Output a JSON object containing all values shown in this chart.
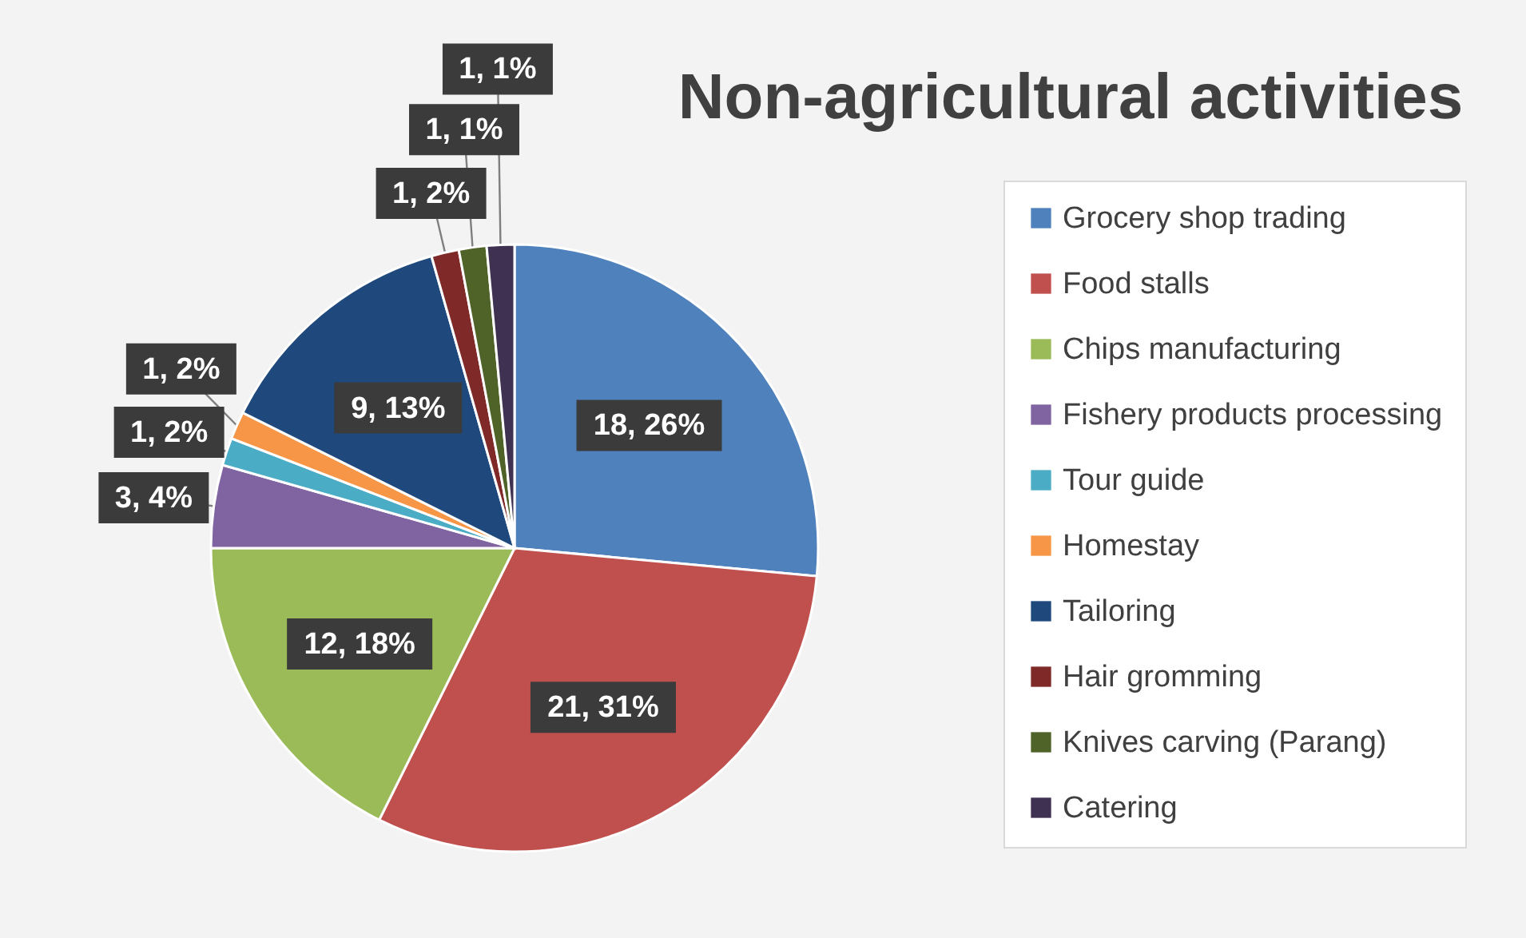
{
  "chart_data": {
    "type": "pie",
    "title": "Non-agricultural activities",
    "categories": [
      "Grocery shop trading",
      "Food stalls",
      "Chips manufacturing",
      "Fishery products processing",
      "Tour guide",
      "Homestay",
      "Tailoring",
      "Hair gromming",
      "Knives carving (Parang)",
      "Catering"
    ],
    "values": [
      18,
      21,
      12,
      3,
      1,
      1,
      9,
      1,
      1,
      1
    ],
    "colors": [
      "#4f81bd",
      "#c0504d",
      "#9bbb59",
      "#8064a2",
      "#4bacc6",
      "#f79646",
      "#1f497d",
      "#7f2a28",
      "#4f6228",
      "#3f3151"
    ],
    "value_labels": [
      "18, 26%",
      "21, 31%",
      "12, 18%",
      "3, 4%",
      "1, 2%",
      "1, 2%",
      "9, 13%",
      "1, 2%",
      "1, 1%",
      "1, 1%"
    ],
    "legend": "right"
  }
}
